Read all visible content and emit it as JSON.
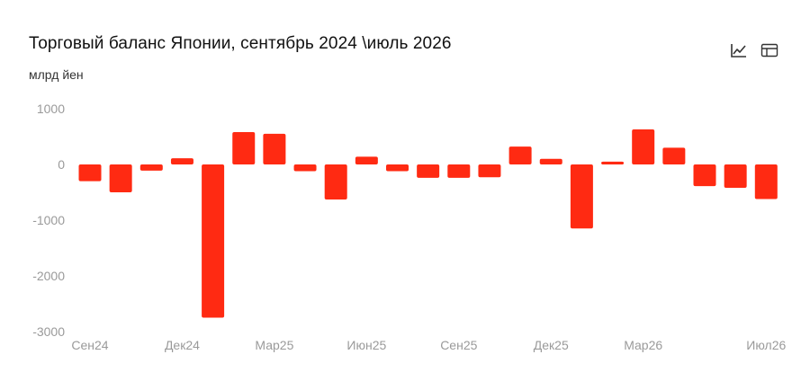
{
  "title": "Торговый баланс Японии, сентябрь 2024 \\июль 2026",
  "unit": "млрд йен",
  "tools": [
    {
      "name": "line-chart-icon"
    },
    {
      "name": "table-view-icon"
    }
  ],
  "chart_data": {
    "type": "bar",
    "title": "Торговый баланс Японии, сентябрь 2024 \\июль 2026",
    "ylabel": "млрд йен",
    "xlabel": "",
    "ylim": [
      -3000,
      1000
    ],
    "yticks": [
      1000,
      0,
      -1000,
      -2000,
      -3000
    ],
    "ytick_labels": [
      "1000",
      "0",
      "-1000",
      "-2000",
      "-3000"
    ],
    "bar_color": "#ff2a12",
    "categories": [
      "Сен24",
      "Окт24",
      "Ноя24",
      "Дек24",
      "Янв25",
      "Фев25",
      "Мар25",
      "Апр25",
      "Май25",
      "Июн25",
      "Июл25",
      "Авг25",
      "Сен25",
      "Окт25",
      "Ноя25",
      "Дек25",
      "Янв26",
      "Фев26",
      "Мар26",
      "Апр26",
      "Май26",
      "Июн26",
      "Июл26"
    ],
    "xtick_labels": [
      {
        "index": 0,
        "label": "Сен24"
      },
      {
        "index": 3,
        "label": "Дек24"
      },
      {
        "index": 6,
        "label": "Мар25"
      },
      {
        "index": 9,
        "label": "Июн25"
      },
      {
        "index": 12,
        "label": "Сен25"
      },
      {
        "index": 15,
        "label": "Дек25"
      },
      {
        "index": 18,
        "label": "Мар26"
      },
      {
        "index": 22,
        "label": "Июл26"
      }
    ],
    "values": [
      -300,
      -500,
      -110,
      110,
      -2750,
      580,
      550,
      -120,
      -630,
      140,
      -120,
      -240,
      -240,
      -230,
      320,
      100,
      -1150,
      50,
      630,
      300,
      -390,
      -420,
      -620
    ]
  }
}
